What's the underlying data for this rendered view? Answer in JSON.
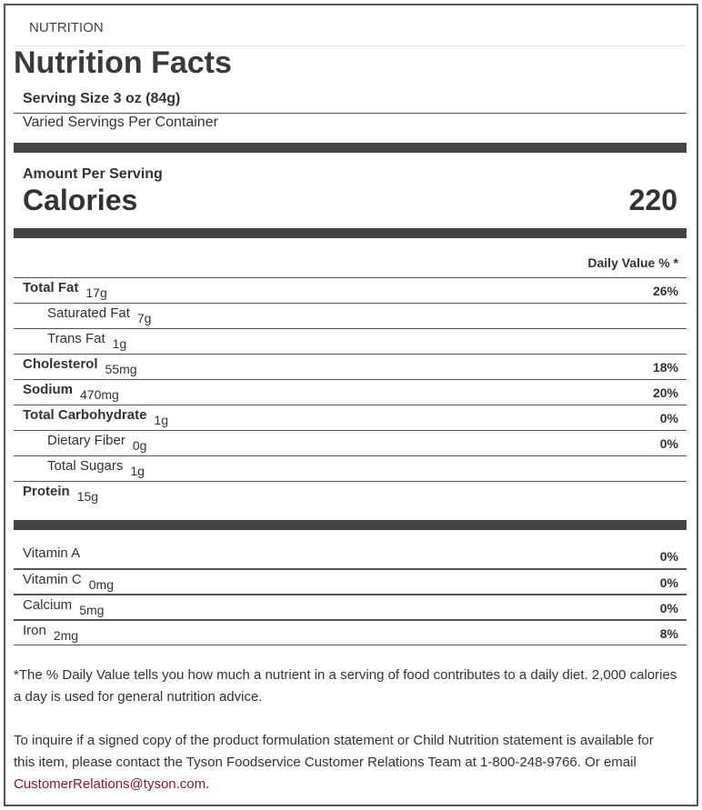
{
  "header": "NUTRITION",
  "title": "Nutrition Facts",
  "serving_size": "Serving Size 3 oz (84g)",
  "servings_per_container": "Varied Servings Per Container",
  "amount_per_serving": "Amount Per Serving",
  "calories_label": "Calories",
  "calories_value": "220",
  "daily_value_header": "Daily Value % *",
  "nutrients": [
    {
      "label": "Total Fat",
      "amount": "17g",
      "pct": "26%"
    },
    {
      "label": "Saturated Fat",
      "amount": "7g",
      "pct": ""
    },
    {
      "label": "Trans Fat",
      "amount": "1g",
      "pct": ""
    },
    {
      "label": "Cholesterol",
      "amount": "55mg",
      "pct": "18%"
    },
    {
      "label": "Sodium",
      "amount": "470mg",
      "pct": "20%"
    },
    {
      "label": "Total Carbohydrate",
      "amount": "1g",
      "pct": "0%"
    },
    {
      "label": "Dietary Fiber",
      "amount": "0g",
      "pct": "0%"
    },
    {
      "label": "Total Sugars",
      "amount": "1g",
      "pct": ""
    },
    {
      "label": "Protein",
      "amount": "15g",
      "pct": ""
    }
  ],
  "vitamins": [
    {
      "label": "Vitamin A",
      "amount": "",
      "pct": "0%"
    },
    {
      "label": "Vitamin C",
      "amount": "0mg",
      "pct": "0%"
    },
    {
      "label": "Calcium",
      "amount": "5mg",
      "pct": "0%"
    },
    {
      "label": "Iron",
      "amount": "2mg",
      "pct": "8%"
    }
  ],
  "footnote": "*The % Daily Value tells you how much a nutrient in a serving of food contributes to a daily diet. 2,000 calories a day is used for general nutrition advice.",
  "inquiry_text": "To inquire if a signed copy of the product formulation statement or Child Nutrition statement is available for this item, please contact the Tyson Foodservice Customer Relations Team at 1-800-248-9766. Or email ",
  "email": "CustomerRelations@tyson.com",
  "inquiry_end": ".",
  "colors": {
    "link": "#8b1a2b",
    "bar": "#444444"
  }
}
